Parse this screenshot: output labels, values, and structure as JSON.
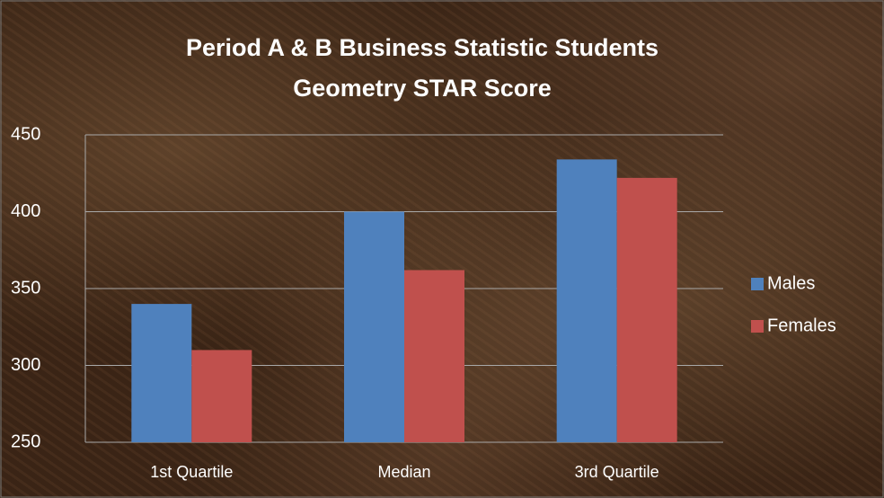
{
  "chart_data": {
    "type": "bar",
    "title": [
      "Period A & B Business Statistic Students",
      "Geometry STAR Score"
    ],
    "categories": [
      "1st Quartile",
      "Median",
      "3rd Quartile"
    ],
    "series": [
      {
        "name": "Males",
        "color": "#4f81bd",
        "values": [
          340,
          400,
          434
        ]
      },
      {
        "name": "Females",
        "color": "#c0504d",
        "values": [
          310,
          362,
          422
        ]
      }
    ],
    "ylim": [
      250,
      450
    ],
    "yticks": [
      250,
      300,
      350,
      400,
      450
    ],
    "grid": true,
    "legend": "right"
  }
}
